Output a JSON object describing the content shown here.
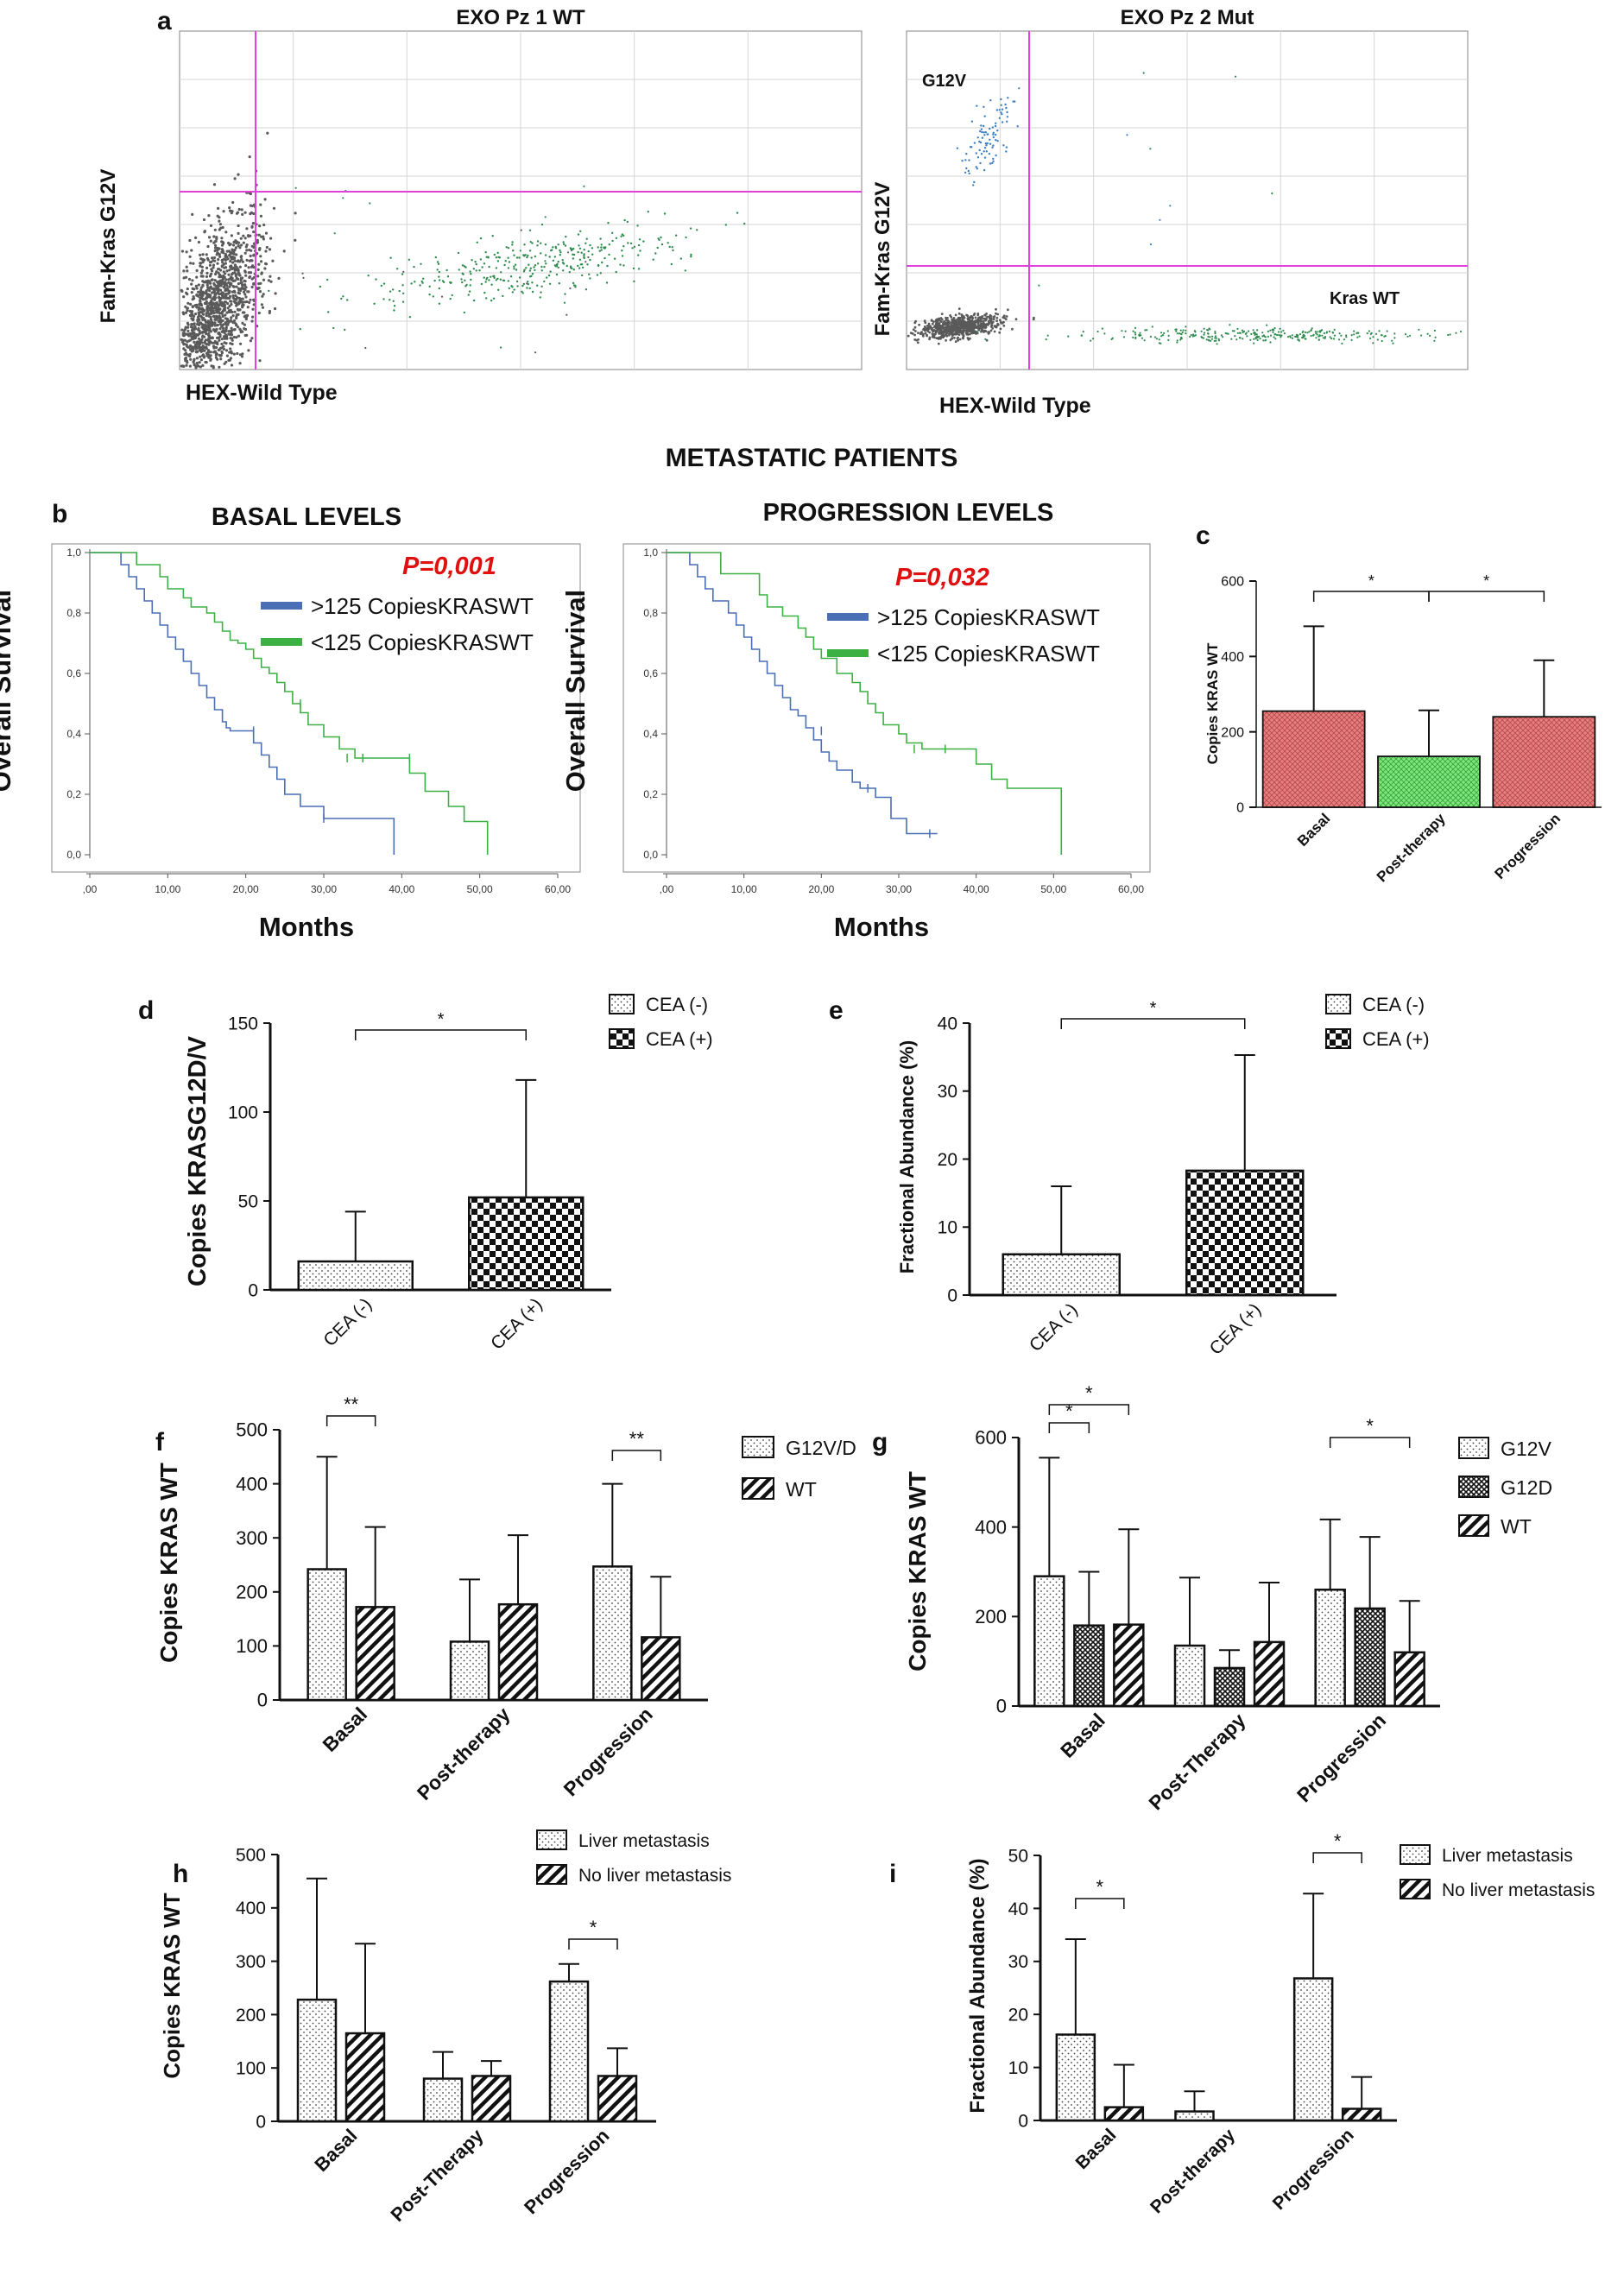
{
  "figure": {
    "panel_letters": [
      "a",
      "b",
      "c",
      "d",
      "e",
      "f",
      "g",
      "h",
      "i"
    ],
    "section_title": "METASTATIC PATIENTS"
  },
  "colors": {
    "magenta": "#e040e0",
    "wt_green": "#2e8b4e",
    "mut_blue": "#3c7fc2",
    "neg_gray": "#5a5a5a",
    "km_blue": "#4a6fb5",
    "km_green": "#3cb043",
    "pvalue_red": "#e01010",
    "bar_red": "#e58080",
    "bar_green": "#7ee87e"
  },
  "chart_data": [
    {
      "id": "a1",
      "type": "scatter",
      "title": "EXO Pz 1 WT",
      "xlabel": "HEX-Wild Type",
      "ylabel": "Fam-Kras G12V",
      "clusters": [
        {
          "name": "negative droplets",
          "color": "gray"
        },
        {
          "name": "HEX wild type",
          "color": "green"
        }
      ],
      "annotations": []
    },
    {
      "id": "a2",
      "type": "scatter",
      "title": "EXO Pz 2 Mut",
      "xlabel": "HEX-Wild Type",
      "ylabel": "Fam-Kras G12V",
      "clusters": [
        {
          "name": "negative droplets",
          "color": "gray"
        },
        {
          "name": "Kras WT",
          "color": "green"
        },
        {
          "name": "G12V",
          "color": "blue"
        }
      ],
      "annotations": [
        "G12V",
        "Kras WT"
      ]
    },
    {
      "id": "b1",
      "type": "line",
      "title": "BASAL LEVELS",
      "xlabel": "Months",
      "ylabel": "Overall Survival",
      "xticks": [
        ",00",
        "10,00",
        "20,00",
        "30,00",
        "40,00",
        "50,00",
        "60,00"
      ],
      "yticks": [
        "0,0",
        "0,2",
        "0,4",
        "0,6",
        "0,8",
        "1,0"
      ],
      "xlim": [
        0,
        60
      ],
      "ylim": [
        0,
        1
      ],
      "pvalue": "P=0,001",
      "series": [
        {
          "name": ">125 CopiesKRASWT",
          "color": "blue",
          "x": [
            0,
            4,
            5,
            6,
            7,
            8,
            9,
            10,
            11,
            12,
            13,
            14,
            15,
            16,
            17,
            17.5,
            18,
            19,
            20,
            21,
            22,
            23,
            24,
            25,
            27,
            30,
            33,
            36,
            39
          ],
          "y": [
            1,
            0.96,
            0.92,
            0.88,
            0.84,
            0.8,
            0.76,
            0.72,
            0.68,
            0.64,
            0.6,
            0.56,
            0.52,
            0.48,
            0.44,
            0.42,
            0.41,
            0.41,
            0.41,
            0.37,
            0.33,
            0.29,
            0.25,
            0.2,
            0.16,
            0.12,
            0.12,
            0.12,
            0
          ]
        },
        {
          "name": "<125 CopiesKRASWT",
          "color": "green",
          "x": [
            0,
            6,
            9,
            10,
            11,
            12,
            13,
            14,
            15,
            16,
            17,
            18,
            19,
            20,
            21,
            22,
            23,
            24,
            25,
            26,
            27,
            28,
            30,
            32,
            34,
            38,
            41,
            43,
            46,
            48,
            51
          ],
          "y": [
            1,
            0.96,
            0.92,
            0.88,
            0.88,
            0.85,
            0.82,
            0.82,
            0.8,
            0.77,
            0.74,
            0.71,
            0.7,
            0.68,
            0.65,
            0.62,
            0.6,
            0.57,
            0.54,
            0.5,
            0.47,
            0.43,
            0.39,
            0.35,
            0.32,
            0.32,
            0.27,
            0.21,
            0.16,
            0.11,
            0
          ]
        }
      ]
    },
    {
      "id": "b2",
      "type": "line",
      "title": "PROGRESSION LEVELS",
      "xlabel": "Months",
      "ylabel": "Overall Survival",
      "xticks": [
        ",00",
        "10,00",
        "20,00",
        "30,00",
        "40,00",
        "50,00",
        "60,00"
      ],
      "yticks": [
        "0,0",
        "0,2",
        "0,4",
        "0,6",
        "0,8",
        "1,0"
      ],
      "xlim": [
        0,
        60
      ],
      "ylim": [
        0,
        1
      ],
      "pvalue": "P=0,032",
      "series": [
        {
          "name": ">125 CopiesKRASWT",
          "color": "blue",
          "x": [
            0,
            3,
            4,
            5,
            6,
            8,
            9,
            10,
            11,
            12,
            13,
            14,
            15,
            16,
            17,
            18,
            19,
            20,
            21,
            22,
            23,
            24,
            25,
            27,
            29,
            31,
            35
          ],
          "y": [
            1,
            0.96,
            0.92,
            0.88,
            0.84,
            0.8,
            0.76,
            0.72,
            0.68,
            0.64,
            0.6,
            0.56,
            0.52,
            0.48,
            0.46,
            0.42,
            0.38,
            0.34,
            0.31,
            0.28,
            0.28,
            0.24,
            0.22,
            0.19,
            0.12,
            0.07,
            0.07
          ]
        },
        {
          "name": "<125 CopiesKRASWT",
          "color": "green",
          "x": [
            0,
            7,
            12,
            13,
            15,
            17,
            18,
            19,
            20,
            21,
            22,
            24,
            25,
            26,
            27,
            28,
            30,
            31,
            33,
            35,
            40,
            42,
            44,
            51
          ],
          "y": [
            1,
            0.93,
            0.86,
            0.82,
            0.79,
            0.75,
            0.72,
            0.68,
            0.65,
            0.65,
            0.6,
            0.57,
            0.54,
            0.5,
            0.47,
            0.43,
            0.4,
            0.37,
            0.35,
            0.35,
            0.3,
            0.25,
            0.22,
            0
          ]
        }
      ]
    },
    {
      "id": "c",
      "type": "bar",
      "categories": [
        "Basal",
        "Post-therapy",
        "Progression"
      ],
      "values": [
        255,
        135,
        240
      ],
      "errors": [
        225,
        122,
        150
      ],
      "ylabel": "Copies KRAS WT",
      "ylim": [
        0,
        600
      ],
      "yticks": [
        "0",
        "200",
        "400",
        "600"
      ],
      "significance": [
        {
          "pair": [
            "Basal",
            "Post-therapy"
          ],
          "label": "*"
        },
        {
          "pair": [
            "Post-therapy",
            "Progression"
          ],
          "label": "*"
        }
      ]
    },
    {
      "id": "d",
      "type": "bar",
      "categories": [
        "CEA (-)",
        "CEA (+)"
      ],
      "values": [
        16,
        52
      ],
      "errors": [
        28,
        66
      ],
      "ylabel": "Copies KRASG12D/V",
      "ylim": [
        0,
        150
      ],
      "yticks": [
        "0",
        "50",
        "100",
        "150"
      ],
      "legend": [
        "CEA (-)",
        "CEA (+)"
      ],
      "significance": [
        {
          "pair": [
            "CEA (-)",
            "CEA (+)"
          ],
          "label": "*"
        }
      ]
    },
    {
      "id": "e",
      "type": "bar",
      "categories": [
        "CEA (-)",
        "CEA (+)"
      ],
      "values": [
        6,
        18.3
      ],
      "errors": [
        10,
        17
      ],
      "ylabel": "Fractional Abundance (%)",
      "ylim": [
        0,
        40
      ],
      "yticks": [
        "0",
        "10",
        "20",
        "30",
        "40"
      ],
      "legend": [
        "CEA (-)",
        "CEA (+)"
      ],
      "significance": [
        {
          "pair": [
            "CEA (-)",
            "CEA (+)"
          ],
          "label": "*"
        }
      ]
    },
    {
      "id": "f",
      "type": "bar",
      "categories": [
        "Basal",
        "Post-therapy",
        "Progression"
      ],
      "series": [
        {
          "name": "G12V/D",
          "values": [
            242,
            108,
            247
          ],
          "errors": [
            208,
            115,
            153
          ]
        },
        {
          "name": "WT",
          "values": [
            172,
            177,
            116
          ],
          "errors": [
            148,
            128,
            112
          ]
        }
      ],
      "ylabel": "Copies KRAS WT",
      "ylim": [
        0,
        500
      ],
      "yticks": [
        "0",
        "100",
        "200",
        "300",
        "400",
        "500"
      ],
      "significance": [
        {
          "group": "Basal",
          "label": "**"
        },
        {
          "group": "Progression",
          "label": "**"
        }
      ]
    },
    {
      "id": "g",
      "type": "bar",
      "categories": [
        "Basal",
        "Post-Therapy",
        "Progression"
      ],
      "series": [
        {
          "name": "G12V",
          "values": [
            290,
            135,
            260
          ],
          "errors": [
            265,
            152,
            157
          ]
        },
        {
          "name": "G12D",
          "values": [
            180,
            85,
            218
          ],
          "errors": [
            120,
            40,
            160
          ]
        },
        {
          "name": "WT",
          "values": [
            182,
            143,
            120
          ],
          "errors": [
            213,
            133,
            115
          ]
        }
      ],
      "ylabel": "Copies KRAS WT",
      "ylim": [
        0,
        600
      ],
      "yticks": [
        "0",
        "200",
        "400",
        "600"
      ],
      "significance": [
        {
          "group": "Basal",
          "pair": [
            "G12V",
            "WT"
          ],
          "label": "*"
        },
        {
          "group": "Basal",
          "pair": [
            "G12V",
            "G12D"
          ],
          "label": "*"
        },
        {
          "group": "Progression",
          "pair": [
            "G12V",
            "WT"
          ],
          "label": "*"
        }
      ]
    },
    {
      "id": "h",
      "type": "bar",
      "categories": [
        "Basal",
        "Post-Therapy",
        "Progression"
      ],
      "series": [
        {
          "name": "Liver metastasis",
          "values": [
            228,
            80,
            262
          ],
          "errors": [
            227,
            50,
            33
          ]
        },
        {
          "name": "No liver metastasis",
          "values": [
            165,
            85,
            85
          ],
          "errors": [
            168,
            28,
            52
          ]
        }
      ],
      "ylabel": "Copies KRAS WT",
      "ylim": [
        0,
        500
      ],
      "yticks": [
        "0",
        "100",
        "200",
        "300",
        "400",
        "500"
      ],
      "significance": [
        {
          "group": "Progression",
          "label": "*"
        }
      ]
    },
    {
      "id": "i",
      "type": "bar",
      "categories": [
        "Basal",
        "Post-therapy",
        "Progression"
      ],
      "series": [
        {
          "name": "Liver metastasis",
          "values": [
            16.2,
            1.7,
            26.8
          ],
          "errors": [
            18,
            3.8,
            16
          ]
        },
        {
          "name": "No liver metastasis",
          "values": [
            2.5,
            0,
            2.2
          ],
          "errors": [
            8,
            0,
            6
          ]
        }
      ],
      "ylabel": "Fractional Abundance (%)",
      "ylim": [
        0,
        50
      ],
      "yticks": [
        "0",
        "10",
        "20",
        "30",
        "40",
        "50"
      ],
      "significance": [
        {
          "group": "Basal",
          "label": "*"
        },
        {
          "group": "Progression",
          "label": "*"
        }
      ]
    }
  ]
}
